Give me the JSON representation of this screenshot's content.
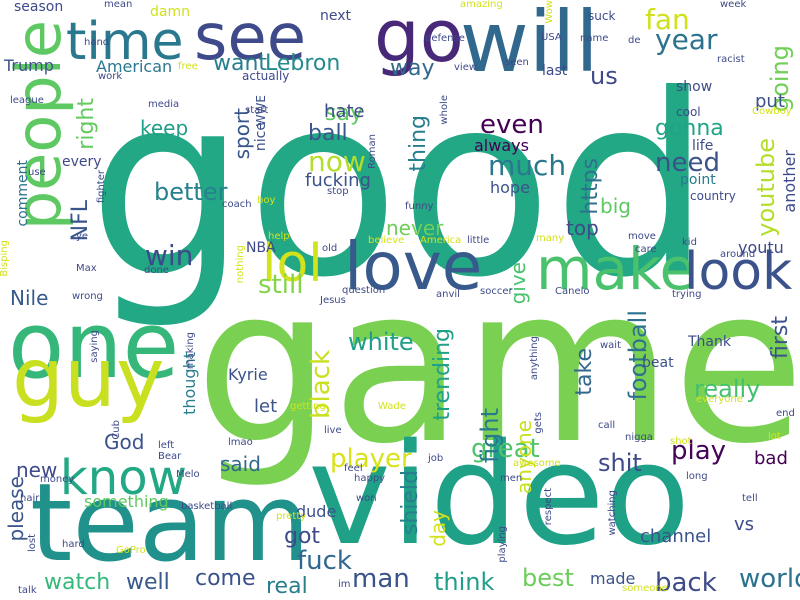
{
  "words": [
    {
      "text": "good",
      "color": "#22a884"
    },
    {
      "text": "game",
      "color": "#7ad151"
    },
    {
      "text": "video",
      "color": "#1fa187"
    },
    {
      "text": "team",
      "color": "#21918c"
    },
    {
      "text": "one",
      "color": "#35b779"
    },
    {
      "text": "guy",
      "color": "#c8e020"
    },
    {
      "text": "will",
      "color": "#31688e"
    },
    {
      "text": "go",
      "color": "#482878"
    },
    {
      "text": "see",
      "color": "#3e4a89"
    },
    {
      "text": "time",
      "color": "#2a788e"
    },
    {
      "text": "people",
      "color": "#5ec962"
    },
    {
      "text": "love",
      "color": "#38598c"
    },
    {
      "text": "make",
      "color": "#4ac16d"
    },
    {
      "text": "know",
      "color": "#22a884"
    },
    {
      "text": "lol",
      "color": "#d2e21b"
    },
    {
      "text": "look",
      "color": "#3b528b"
    },
    {
      "text": "fan",
      "color": "#d0e11c"
    },
    {
      "text": "year",
      "color": "#2c728e"
    },
    {
      "text": "want",
      "color": "#277f8e"
    },
    {
      "text": "Lebron",
      "color": "#238a8d"
    },
    {
      "text": "say",
      "color": "#5ec962"
    },
    {
      "text": "way",
      "color": "#31688e"
    },
    {
      "text": "us",
      "color": "#3e4a89"
    },
    {
      "text": "going",
      "color": "#70cf57"
    },
    {
      "text": "right",
      "color": "#63cb5f"
    },
    {
      "text": "better",
      "color": "#26828e"
    },
    {
      "text": "even",
      "color": "#440154"
    },
    {
      "text": "much",
      "color": "#2a788e"
    },
    {
      "text": "now",
      "color": "#b5de2b"
    },
    {
      "text": "ball",
      "color": "#39568c"
    },
    {
      "text": "thing",
      "color": "#277f8e"
    },
    {
      "text": "need",
      "color": "#3b528b"
    },
    {
      "text": "gonna",
      "color": "#20a486"
    },
    {
      "text": "youtube",
      "color": "#b5de2b"
    },
    {
      "text": "win",
      "color": "#3e4a89"
    },
    {
      "text": "still",
      "color": "#84d44b"
    },
    {
      "text": "white",
      "color": "#1f9e89"
    },
    {
      "text": "player",
      "color": "#d8e219"
    },
    {
      "text": "great",
      "color": "#50c46a"
    },
    {
      "text": "play",
      "color": "#450457"
    },
    {
      "text": "really",
      "color": "#44bf70"
    },
    {
      "text": "football",
      "color": "#2c728e"
    },
    {
      "text": "shit",
      "color": "#3e4a89"
    },
    {
      "text": "fight",
      "color": "#2a788e"
    },
    {
      "text": "fuck",
      "color": "#31688e"
    },
    {
      "text": "man",
      "color": "#3b528b"
    },
    {
      "text": "think",
      "color": "#1f9e89"
    },
    {
      "text": "best",
      "color": "#6ccd5a"
    },
    {
      "text": "world",
      "color": "#2c728e"
    },
    {
      "text": "back",
      "color": "#3e4a89"
    },
    {
      "text": "watch",
      "color": "#35b779"
    },
    {
      "text": "well",
      "color": "#38598c"
    },
    {
      "text": "come",
      "color": "#3b528b"
    },
    {
      "text": "real",
      "color": "#277f8e"
    },
    {
      "text": "got",
      "color": "#3e4a89"
    },
    {
      "text": "God",
      "color": "#3b528b"
    },
    {
      "text": "said",
      "color": "#31688e"
    },
    {
      "text": "new",
      "color": "#3e4a89"
    },
    {
      "text": "Nile",
      "color": "#38598c"
    },
    {
      "text": "black",
      "color": "#c8e020"
    },
    {
      "text": "NFL",
      "color": "#39568c"
    },
    {
      "text": "sport",
      "color": "#39568c"
    },
    {
      "text": "keep",
      "color": "#1f9e89"
    },
    {
      "text": "hate",
      "color": "#3e4a89"
    },
    {
      "text": "fucking",
      "color": "#3b528b"
    },
    {
      "text": "hope",
      "color": "#3b528b"
    },
    {
      "text": "always",
      "color": "#440154"
    },
    {
      "text": "https",
      "color": "#2c728e"
    },
    {
      "text": "big",
      "color": "#5ec962"
    },
    {
      "text": "top",
      "color": "#3e4a89"
    },
    {
      "text": "never",
      "color": "#6ece58"
    },
    {
      "text": "give",
      "color": "#4ac16d"
    },
    {
      "text": "trending",
      "color": "#1fa187"
    },
    {
      "text": "anyone",
      "color": "#c8e020"
    },
    {
      "text": "take",
      "color": "#31688e"
    },
    {
      "text": "first",
      "color": "#3b528b"
    },
    {
      "text": "youtu",
      "color": "#3e4a89"
    },
    {
      "text": "bad",
      "color": "#440154"
    },
    {
      "text": "vs",
      "color": "#3e4a89"
    },
    {
      "text": "channel",
      "color": "#3b528b"
    },
    {
      "text": "made",
      "color": "#3b528b"
    },
    {
      "text": "shield",
      "color": "#277f8e"
    },
    {
      "text": "day",
      "color": "#d2e21b"
    },
    {
      "text": "please",
      "color": "#39568c"
    },
    {
      "text": "something",
      "color": "#5ec962"
    },
    {
      "text": "dude",
      "color": "#3b528b"
    },
    {
      "text": "Kyrie",
      "color": "#3b528b"
    },
    {
      "text": "let",
      "color": "#3b528b"
    },
    {
      "text": "thought",
      "color": "#277f8e"
    },
    {
      "text": "American",
      "color": "#2a788e"
    },
    {
      "text": "Trump",
      "color": "#3b528b"
    },
    {
      "text": "season",
      "color": "#3e4a89"
    },
    {
      "text": "damn",
      "color": "#d0e11c"
    },
    {
      "text": "next",
      "color": "#3e4a89"
    },
    {
      "text": "last",
      "color": "#3e4a89"
    },
    {
      "text": "put",
      "color": "#3b528b"
    },
    {
      "text": "show",
      "color": "#3e4a89"
    },
    {
      "text": "life",
      "color": "#3e4a89"
    },
    {
      "text": "point",
      "color": "#2a788e"
    },
    {
      "text": "another",
      "color": "#3e4a89"
    },
    {
      "text": "comment",
      "color": "#2c728e"
    },
    {
      "text": "every",
      "color": "#3e4a89"
    },
    {
      "text": "NBA",
      "color": "#3e4a89"
    },
    {
      "text": "Thank",
      "color": "#3e4a89"
    },
    {
      "text": "beat",
      "color": "#3b528b"
    },
    {
      "text": "nice",
      "color": "#3b528b"
    },
    {
      "text": "WWE",
      "color": "#3b528b"
    },
    {
      "text": "cool",
      "color": "#3e4a89"
    },
    {
      "text": "country",
      "color": "#3e4a89"
    },
    {
      "text": "mean",
      "color": "#3e4a89"
    },
    {
      "text": "hand",
      "color": "#3e4a89"
    },
    {
      "text": "work",
      "color": "#3e4a89"
    },
    {
      "text": "league",
      "color": "#3e4a89"
    },
    {
      "text": "media",
      "color": "#3e4a89"
    },
    {
      "text": "actually",
      "color": "#3e4a89"
    },
    {
      "text": "USA",
      "color": "#3e4a89"
    },
    {
      "text": "seen",
      "color": "#3e4a89"
    },
    {
      "text": "suck",
      "color": "#3e4a89"
    },
    {
      "text": "racist",
      "color": "#3e4a89"
    },
    {
      "text": "week",
      "color": "#3e4a89"
    },
    {
      "text": "defense",
      "color": "#3e4a89"
    },
    {
      "text": "view",
      "color": "#3e4a89"
    },
    {
      "text": "start",
      "color": "#3e4a89"
    },
    {
      "text": "whole",
      "color": "#3e4a89"
    },
    {
      "text": "name",
      "color": "#3e4a89"
    },
    {
      "text": "de",
      "color": "#3e4a89"
    },
    {
      "text": "amazing",
      "color": "#d2e21b"
    },
    {
      "text": "Wow",
      "color": "#d2e21b"
    },
    {
      "text": "free",
      "color": "#d2e21b"
    },
    {
      "text": "Cowboy",
      "color": "#d2e21b"
    },
    {
      "text": "fighter",
      "color": "#3e4a89"
    },
    {
      "text": "use",
      "color": "#3e4a89"
    },
    {
      "text": "Bisping",
      "color": "#d2e21b"
    },
    {
      "text": "boy",
      "color": "#d2e21b"
    },
    {
      "text": "coach",
      "color": "#3e4a89"
    },
    {
      "text": "stop",
      "color": "#3e4a89"
    },
    {
      "text": "Roman",
      "color": "#3e4a89"
    },
    {
      "text": "funny",
      "color": "#3e4a89"
    },
    {
      "text": "care",
      "color": "#3e4a89"
    },
    {
      "text": "kid",
      "color": "#3e4a89"
    },
    {
      "text": "move",
      "color": "#3e4a89"
    },
    {
      "text": "around",
      "color": "#3e4a89"
    },
    {
      "text": "many",
      "color": "#d2e21b"
    },
    {
      "text": "little",
      "color": "#3e4a89"
    },
    {
      "text": "America",
      "color": "#d2e21b"
    },
    {
      "text": "believe",
      "color": "#d2e21b"
    },
    {
      "text": "old",
      "color": "#3e4a89"
    },
    {
      "text": "help",
      "color": "#d2e21b"
    },
    {
      "text": "ye",
      "color": "#3e4a89"
    },
    {
      "text": "Max",
      "color": "#3e4a89"
    },
    {
      "text": "wrong",
      "color": "#3e4a89"
    },
    {
      "text": "done",
      "color": "#3e4a89"
    },
    {
      "text": "Jesus",
      "color": "#3e4a89"
    },
    {
      "text": "question",
      "color": "#3e4a89"
    },
    {
      "text": "anvil",
      "color": "#3e4a89"
    },
    {
      "text": "soccer",
      "color": "#3e4a89"
    },
    {
      "text": "Canelo",
      "color": "#3e4a89"
    },
    {
      "text": "trying",
      "color": "#3e4a89"
    },
    {
      "text": "nothing",
      "color": "#d2e21b"
    },
    {
      "text": "making",
      "color": "#3e4a89"
    },
    {
      "text": "saying",
      "color": "#3e4a89"
    },
    {
      "text": "anything",
      "color": "#3e4a89"
    },
    {
      "text": "wait",
      "color": "#3e4a89"
    },
    {
      "text": "everyone",
      "color": "#d2e21b"
    },
    {
      "text": "end",
      "color": "#3e4a89"
    },
    {
      "text": "lot",
      "color": "#d2e21b"
    },
    {
      "text": "shot",
      "color": "#d2e21b"
    },
    {
      "text": "nigga",
      "color": "#3e4a89"
    },
    {
      "text": "call",
      "color": "#3e4a89"
    },
    {
      "text": "gets",
      "color": "#3e4a89"
    },
    {
      "text": "Wade",
      "color": "#d2e21b"
    },
    {
      "text": "getting",
      "color": "#d2e21b"
    },
    {
      "text": "live",
      "color": "#3e4a89"
    },
    {
      "text": "lmao",
      "color": "#3e4a89"
    },
    {
      "text": "left",
      "color": "#3e4a89"
    },
    {
      "text": "Bear",
      "color": "#3e4a89"
    },
    {
      "text": "Cub",
      "color": "#3e4a89"
    },
    {
      "text": "job",
      "color": "#3e4a89"
    },
    {
      "text": "feel",
      "color": "#3e4a89"
    },
    {
      "text": "happy",
      "color": "#3e4a89"
    },
    {
      "text": "won",
      "color": "#3e4a89"
    },
    {
      "text": "men",
      "color": "#3e4a89"
    },
    {
      "text": "awesome",
      "color": "#d2e21b"
    },
    {
      "text": "long",
      "color": "#3e4a89"
    },
    {
      "text": "tell",
      "color": "#3e4a89"
    },
    {
      "text": "respect",
      "color": "#3e4a89"
    },
    {
      "text": "watching",
      "color": "#3e4a89"
    },
    {
      "text": "playing",
      "color": "#3e4a89"
    },
    {
      "text": "someone",
      "color": "#d2e21b"
    },
    {
      "text": "pretty",
      "color": "#d2e21b"
    },
    {
      "text": "basketball",
      "color": "#3e4a89"
    },
    {
      "text": "Melo",
      "color": "#3e4a89"
    },
    {
      "text": "money",
      "color": "#3e4a89"
    },
    {
      "text": "hair",
      "color": "#3e4a89"
    },
    {
      "text": "lost",
      "color": "#3e4a89"
    },
    {
      "text": "hard",
      "color": "#3e4a89"
    },
    {
      "text": "GoPro",
      "color": "#d2e21b"
    },
    {
      "text": "talk",
      "color": "#3e4a89"
    },
    {
      "text": "im",
      "color": "#3e4a89"
    }
  ]
}
